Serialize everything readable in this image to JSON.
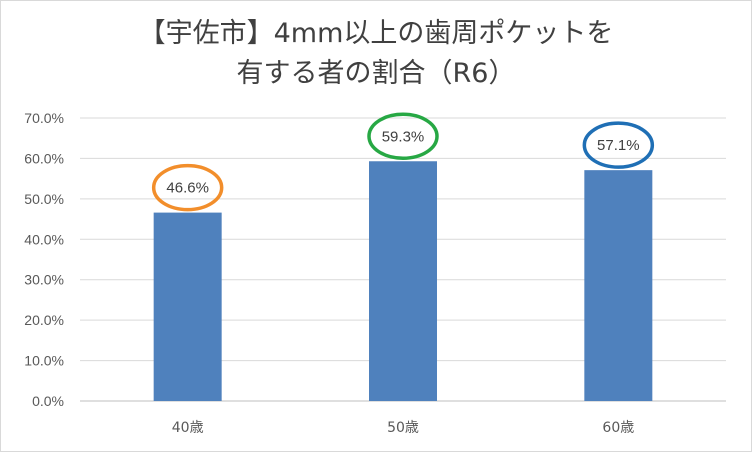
{
  "chart_data": {
    "type": "bar",
    "title_lines": [
      "【宇佐市】4mm以上の歯周ポケットを",
      "有する者の割合（R6）"
    ],
    "categories": [
      "40歳",
      "50歳",
      "60歳"
    ],
    "values": [
      46.6,
      59.3,
      57.1
    ],
    "data_labels": [
      "46.6%",
      "59.3%",
      "57.1%"
    ],
    "highlight_colors": [
      "#f28e2b",
      "#27a844",
      "#1f6fb5"
    ],
    "bar_color": "#4f81bd",
    "ylim": [
      0,
      70
    ],
    "yticks": [
      0,
      10,
      20,
      30,
      40,
      50,
      60,
      70
    ],
    "ytick_labels": [
      "0.0%",
      "10.0%",
      "20.0%",
      "30.0%",
      "40.0%",
      "50.0%",
      "60.0%",
      "70.0%"
    ],
    "xlabel": "",
    "ylabel": "",
    "grid": true,
    "legend": "none"
  }
}
